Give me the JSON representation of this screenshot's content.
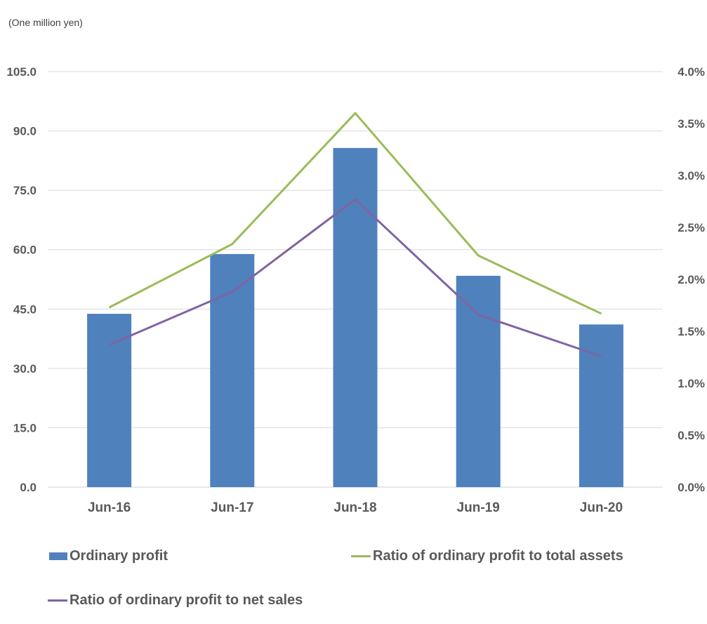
{
  "chart_data": {
    "type": "bar",
    "unit_label": "(One million yen)",
    "categories": [
      "Jun-16",
      "Jun-17",
      "Jun-18",
      "Jun-19",
      "Jun-20"
    ],
    "series": [
      {
        "name": "Ordinary profit",
        "type": "bar",
        "axis": "left",
        "values": [
          43.8,
          58.9,
          85.7,
          53.4,
          41.1
        ],
        "color": "#4f81bd"
      },
      {
        "name": "Ratio of ordinary profit to total assets",
        "type": "line",
        "axis": "right",
        "values": [
          1.73,
          2.34,
          3.6,
          2.23,
          1.67
        ],
        "color": "#9bbb59"
      },
      {
        "name": "Ratio of ordinary profit to net sales",
        "type": "line",
        "axis": "right",
        "values": [
          1.37,
          1.88,
          2.77,
          1.66,
          1.26
        ],
        "color": "#8064a2"
      }
    ],
    "y_left": {
      "min": 0,
      "max": 105,
      "ticks": [
        "0.0",
        "15.0",
        "30.0",
        "45.0",
        "60.0",
        "75.0",
        "90.0",
        "105.0"
      ]
    },
    "y_right": {
      "min": 0,
      "max": 4,
      "ticks": [
        "0.0%",
        "0.5%",
        "1.0%",
        "1.5%",
        "2.0%",
        "2.5%",
        "3.0%",
        "3.5%",
        "4.0%"
      ]
    },
    "grid": true,
    "legend_position": "bottom"
  },
  "legend": {
    "bar_label": "Ordinary profit",
    "assets_label": "Ratio of ordinary profit to total assets",
    "sales_label": "Ratio of ordinary profit to net sales"
  }
}
